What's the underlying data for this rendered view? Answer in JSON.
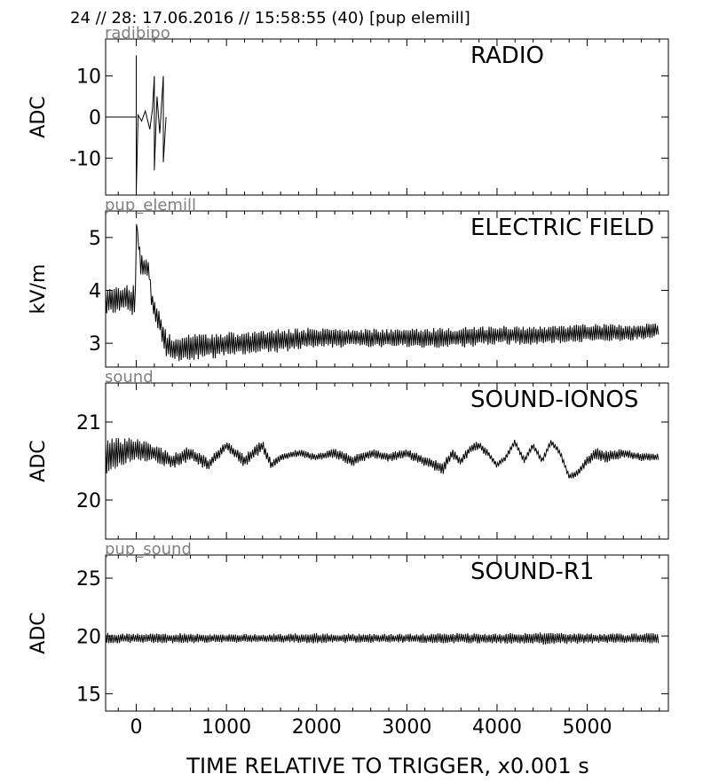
{
  "header": "24 // 28:   17.06.2016 // 15:58:55 (40)  [pup elemill]",
  "chart_data": {
    "type": "line",
    "xlabel": "TIME RELATIVE TO TRIGGER,   x0.001 s",
    "xlim": [
      -340,
      5900
    ],
    "xticks": [
      0,
      1000,
      2000,
      3000,
      4000,
      5000
    ],
    "panels": [
      {
        "source": "radibipo",
        "name": "RADIO",
        "ylabel": "ADC",
        "ylim": [
          -19,
          19
        ],
        "yticks": [
          10,
          0,
          -10
        ],
        "ytick_labels": [
          "10",
          "0",
          "-10"
        ],
        "series": [
          {
            "x": [
              -340,
              -20,
              0,
              0,
              0,
              20,
              60,
              100,
              150,
              180,
              200,
              200,
              230,
              260,
              300,
              300,
              330
            ],
            "y": [
              0,
              0,
              0,
              15,
              -18,
              0.5,
              -1,
              1.5,
              -3,
              2,
              10,
              -13,
              5,
              -4,
              10,
              -11,
              0
            ]
          }
        ]
      },
      {
        "source": "pup_elemill",
        "name": "ELECTRIC FIELD",
        "ylabel": "kV/m",
        "ylim": [
          2.55,
          5.5
        ],
        "yticks": [
          5,
          4,
          3
        ],
        "ytick_labels": [
          "5",
          "4",
          "3"
        ],
        "series": [
          {
            "x": [
              -340,
              -100,
              -50,
              0,
              0,
              50,
              150,
              160,
              200,
              260,
              300,
              340,
              400,
              800,
              1200,
              1600,
              2000,
              2500,
              3000,
              3500,
              4000,
              4500,
              5000,
              5500,
              5800
            ],
            "y": [
              3.8,
              3.85,
              3.8,
              3.9,
              5.3,
              4.5,
              4.35,
              3.9,
              3.6,
              3.4,
              3.1,
              2.95,
              2.9,
              2.95,
              3.0,
              3.05,
              3.1,
              3.1,
              3.1,
              3.1,
              3.15,
              3.15,
              3.2,
              3.2,
              3.25
            ],
            "band": [
              0.25,
              0.25,
              0.3,
              0.3,
              0.0,
              0.2,
              0.15,
              0.2,
              0.2,
              0.2,
              0.25,
              0.25,
              0.25,
              0.25,
              0.22,
              0.22,
              0.2,
              0.18,
              0.18,
              0.2,
              0.18,
              0.18,
              0.18,
              0.15,
              0.15
            ]
          }
        ]
      },
      {
        "source": "sound",
        "name": "SOUND-IONOS",
        "ylabel": "ADC",
        "ylim": [
          19.5,
          21.5
        ],
        "yticks": [
          21,
          20
        ],
        "ytick_labels": [
          "21",
          "20"
        ],
        "series": [
          {
            "x": [
              -340,
              -200,
              0,
              200,
              400,
              600,
              800,
              1000,
              1200,
              1400,
              1500,
              1600,
              1800,
              2000,
              2200,
              2400,
              2600,
              2800,
              3000,
              3200,
              3400,
              3500,
              3600,
              3700,
              3800,
              3900,
              4000,
              4100,
              4200,
              4300,
              4400,
              4500,
              4600,
              4700,
              4800,
              4900,
              5000,
              5100,
              5200,
              5400,
              5600,
              5800
            ],
            "y": [
              20.55,
              20.6,
              20.65,
              20.6,
              20.5,
              20.6,
              20.45,
              20.7,
              20.5,
              20.7,
              20.45,
              20.55,
              20.6,
              20.55,
              20.6,
              20.5,
              20.6,
              20.55,
              20.6,
              20.5,
              20.4,
              20.6,
              20.5,
              20.65,
              20.7,
              20.6,
              20.45,
              20.55,
              20.75,
              20.5,
              20.7,
              20.5,
              20.75,
              20.6,
              20.3,
              20.35,
              20.5,
              20.6,
              20.55,
              20.6,
              20.55,
              20.55
            ],
            "band": [
              0.25,
              0.2,
              0.15,
              0.12,
              0.1,
              0.1,
              0.08,
              0.06,
              0.08,
              0.08,
              0.06,
              0.05,
              0.05,
              0.05,
              0.06,
              0.08,
              0.06,
              0.06,
              0.06,
              0.07,
              0.08,
              0.06,
              0.06,
              0.06,
              0.06,
              0.05,
              0.04,
              0.04,
              0.04,
              0.04,
              0.04,
              0.04,
              0.04,
              0.04,
              0.04,
              0.05,
              0.06,
              0.08,
              0.08,
              0.06,
              0.05,
              0.05
            ]
          }
        ]
      },
      {
        "source": "pup_sound",
        "name": "SOUND-R1",
        "ylabel": "ADC",
        "ylim": [
          13.5,
          27
        ],
        "yticks": [
          25,
          20,
          15
        ],
        "ytick_labels": [
          "25",
          "20",
          "15"
        ],
        "series": [
          {
            "x": [
              -340,
              0,
              500,
              1000,
              1500,
              2000,
              2500,
              3000,
              3500,
              4000,
              4500,
              5000,
              5500,
              5800
            ],
            "y": [
              19.8,
              19.8,
              19.8,
              19.8,
              19.8,
              19.8,
              19.8,
              19.8,
              19.8,
              19.8,
              19.8,
              19.8,
              19.8,
              19.8
            ],
            "band": [
              0.5,
              0.4,
              0.45,
              0.4,
              0.4,
              0.45,
              0.4,
              0.4,
              0.45,
              0.45,
              0.55,
              0.45,
              0.4,
              0.5
            ]
          }
        ]
      }
    ]
  }
}
